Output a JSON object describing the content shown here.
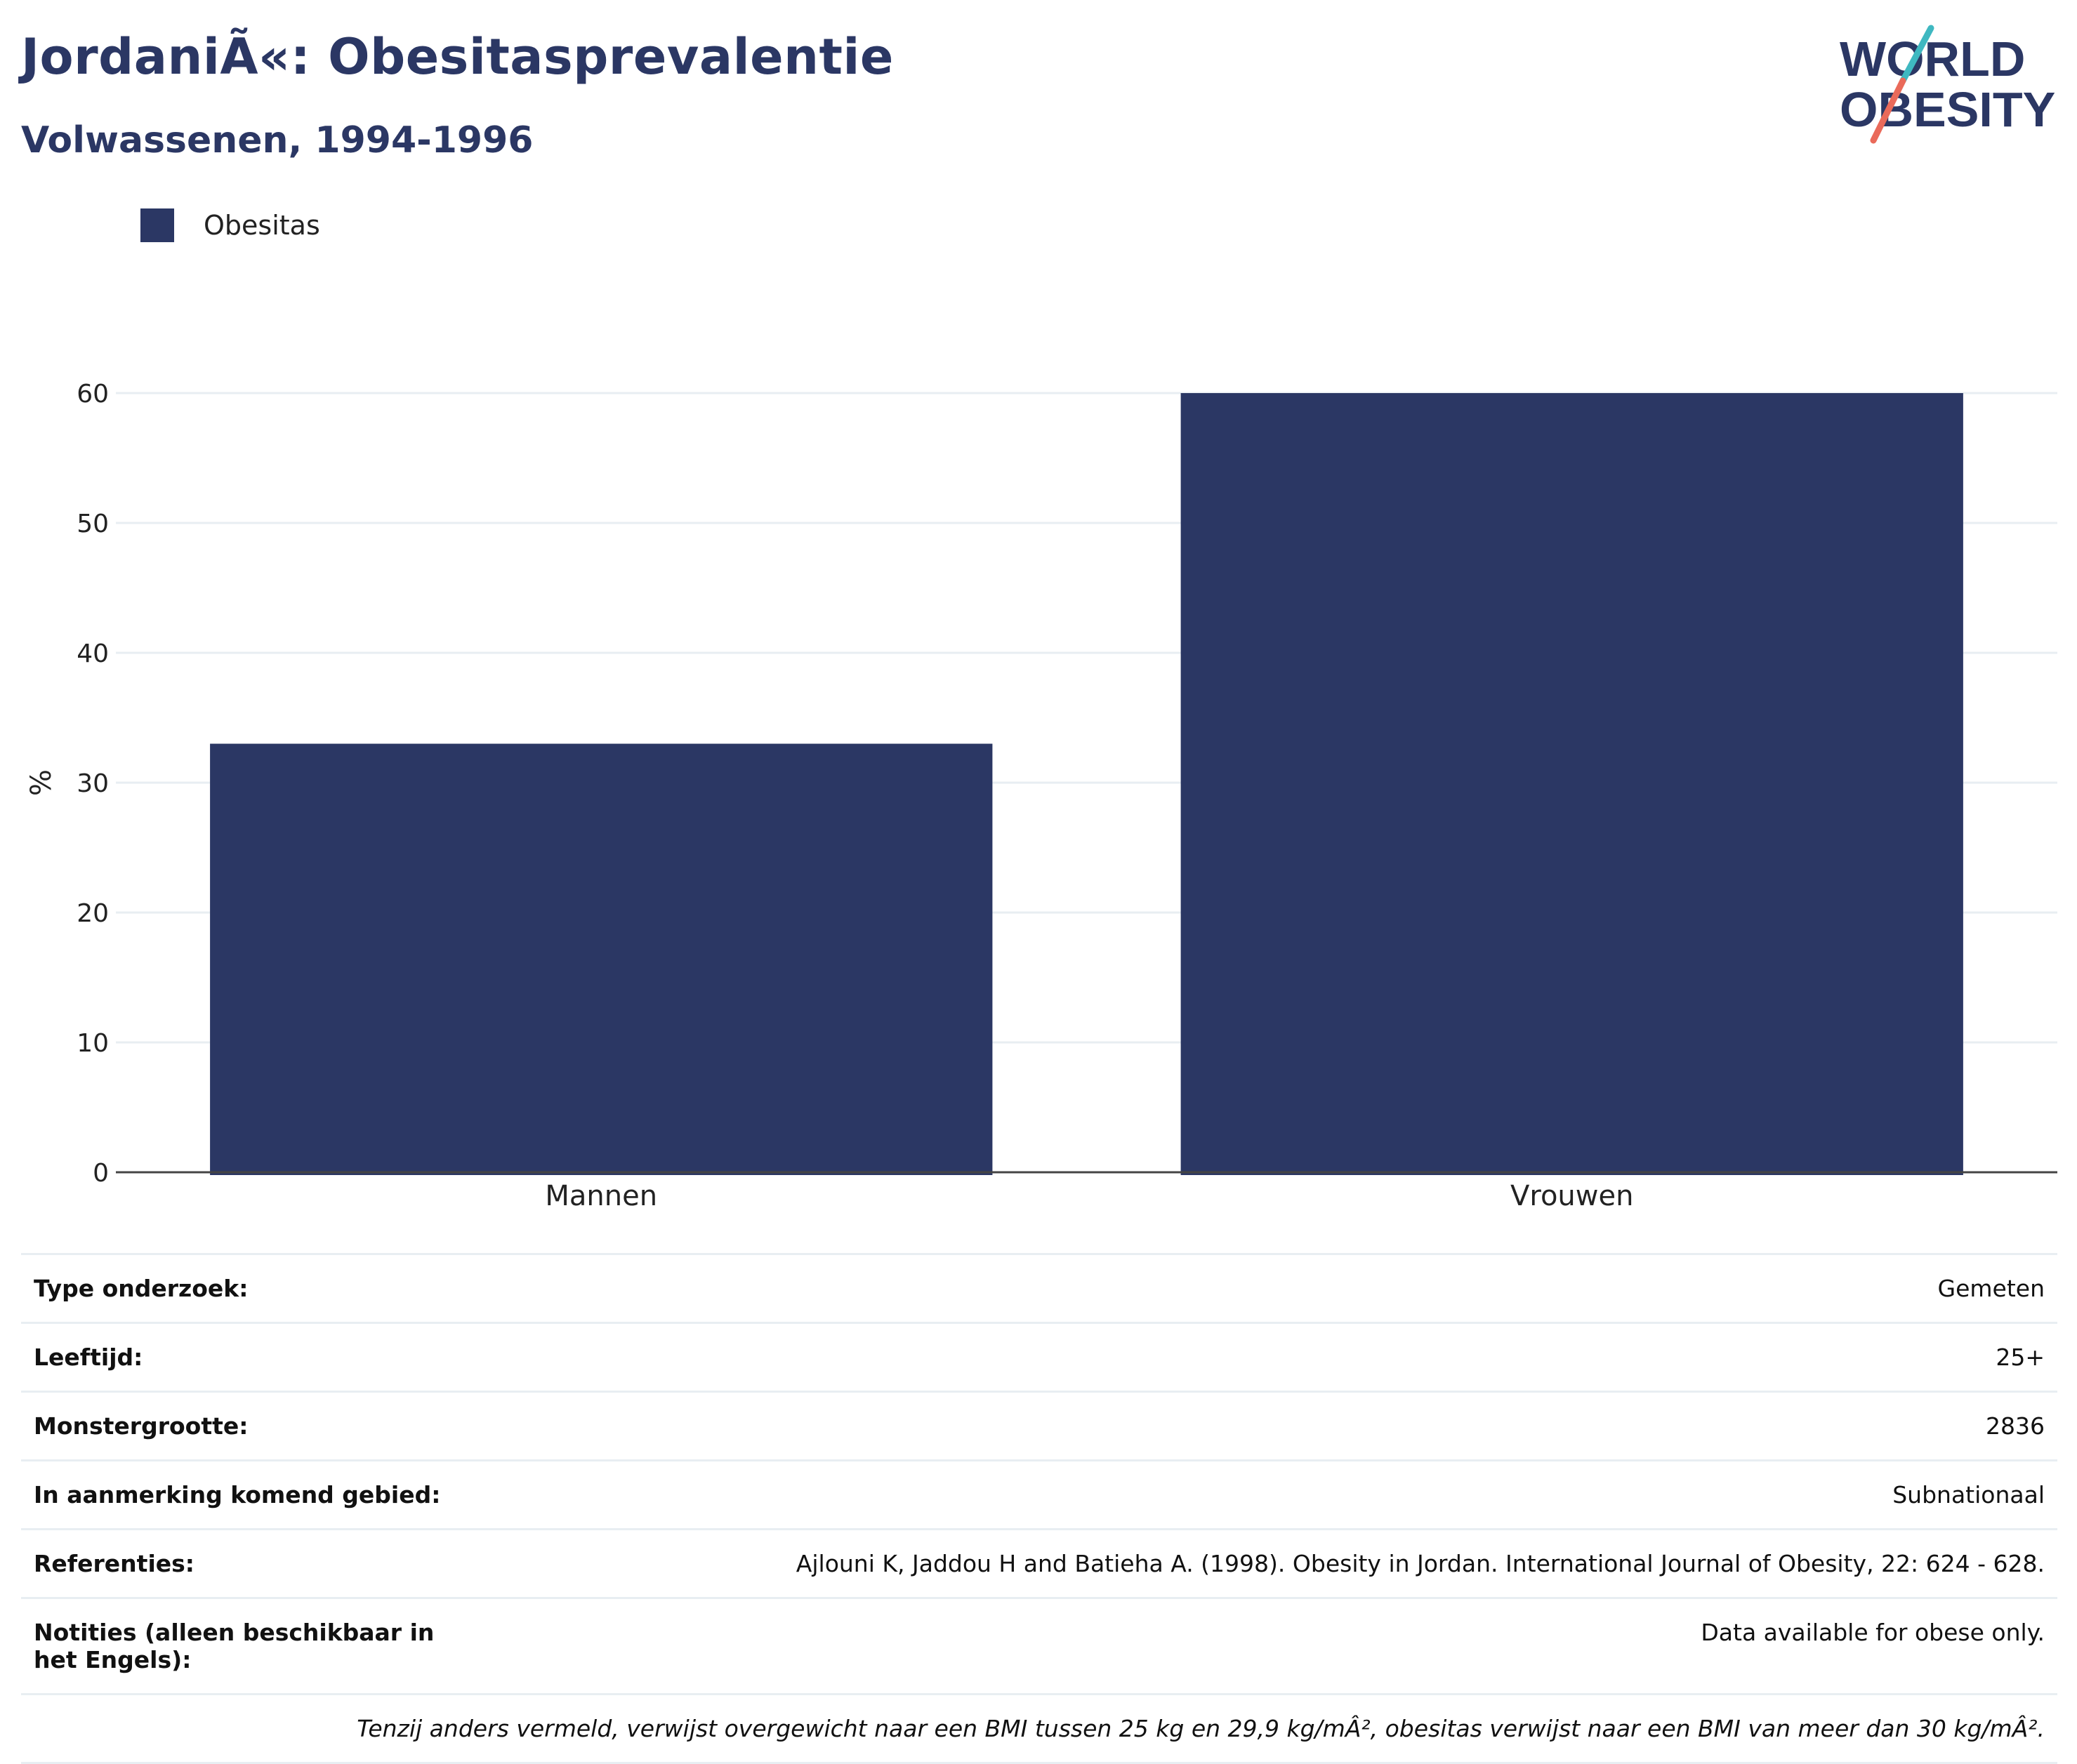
{
  "title": "JordaniÃ«: Obesitasprevalentie",
  "subtitle": "Volwassenen, 1994-1996",
  "logo": {
    "line1": "WORLD",
    "line2": "OBESITY",
    "colors": {
      "navy": "#2b3764",
      "teal": "#3fb8c1",
      "coral": "#ea6a5a"
    }
  },
  "legend": {
    "label": "Obesitas",
    "color": "#2b3764"
  },
  "chart_data": {
    "type": "bar",
    "categories": [
      "Mannen",
      "Vrouwen"
    ],
    "series": [
      {
        "name": "Obesitas",
        "values": [
          33,
          60
        ],
        "color": "#2b3764"
      }
    ],
    "ylabel": "%",
    "xlabel": "",
    "ylim": [
      0,
      60
    ],
    "yticks": [
      0,
      10,
      20,
      30,
      40,
      50,
      60
    ],
    "grid": true,
    "legend_position": "top-left"
  },
  "info": [
    {
      "key": "Type onderzoek:",
      "value": "Gemeten"
    },
    {
      "key": "Leeftijd:",
      "value": "25+"
    },
    {
      "key": "Monstergrootte:",
      "value": "2836"
    },
    {
      "key": "In aanmerking komend gebied:",
      "value": "Subnationaal"
    },
    {
      "key": "Referenties:",
      "value": "Ajlouni K, Jaddou H and Batieha A. (1998). Obesity in Jordan. International Journal of Obesity, 22: 624 - 628."
    },
    {
      "key": "Notities (alleen beschikbaar in het Engels):",
      "value": "Data available for obese only."
    }
  ],
  "footnote": "Tenzij anders vermeld, verwijst overgewicht naar een BMI tussen 25 kg en 29,9 kg/mÂ², obesitas verwijst naar een BMI van meer dan 30 kg/mÂ²."
}
